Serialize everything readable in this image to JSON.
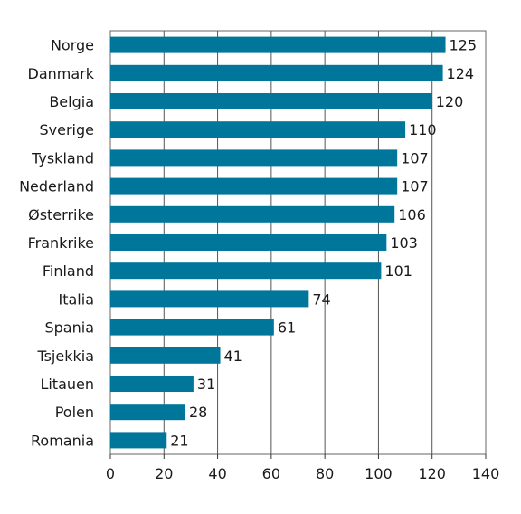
{
  "chart_data": {
    "type": "bar",
    "orientation": "horizontal",
    "categories": [
      "Norge",
      "Danmark",
      "Belgia",
      "Sverige",
      "Tyskland",
      "Nederland",
      "Østerrike",
      "Frankrike",
      "Finland",
      "Italia",
      "Spania",
      "Tsjekkia",
      "Litauen",
      "Polen",
      "Romania"
    ],
    "values": [
      125,
      124,
      120,
      110,
      107,
      107,
      106,
      103,
      101,
      74,
      61,
      41,
      31,
      28,
      21
    ],
    "value_labels": [
      "125",
      "124",
      "120",
      "110",
      "107",
      "107",
      "106",
      "103",
      "101",
      "74",
      "61",
      "41",
      "31",
      "28",
      "21"
    ],
    "xlim": [
      0,
      140
    ],
    "xticks": [
      0,
      20,
      40,
      60,
      80,
      100,
      120,
      140
    ],
    "xtick_labels": [
      "0",
      "20",
      "40",
      "60",
      "80",
      "100",
      "120",
      "140"
    ],
    "title": "",
    "xlabel": "",
    "ylabel": "",
    "grid": "vertical",
    "legend": "none",
    "bar_color": "#00769a",
    "grid_color": "#555555"
  }
}
